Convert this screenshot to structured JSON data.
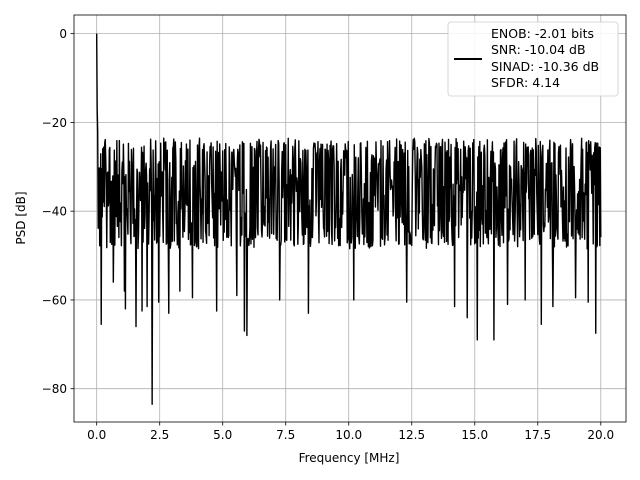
{
  "chart_data": {
    "type": "line",
    "title": "",
    "xlabel": "Frequency [MHz]",
    "ylabel": "PSD [dB]",
    "xlim": [
      -0.9,
      21.0
    ],
    "ylim": [
      -87.5,
      4.2
    ],
    "grid": true,
    "legend_placement": "top-right",
    "x_ticks": [
      0.0,
      2.5,
      5.0,
      7.5,
      10.0,
      12.5,
      15.0,
      17.5,
      20.0
    ],
    "x_tick_labels": [
      "0.0",
      "2.5",
      "5.0",
      "7.5",
      "10.0",
      "12.5",
      "15.0",
      "17.5",
      "20.0"
    ],
    "y_ticks": [
      0,
      -20,
      -40,
      -60,
      -80
    ],
    "y_tick_labels": [
      "0",
      "−20",
      "−40",
      "−60",
      "−80"
    ],
    "series": [
      {
        "color": "#000000",
        "trace": {
          "x_start": 0.0,
          "x_end": 20.0,
          "x_step": 0.02,
          "noise_center_db": -36,
          "noise_span_db": 24,
          "peak": {
            "x": 0.0,
            "y": 0.0
          },
          "dips": [
            {
              "x": 0.18,
              "y": -65.5
            },
            {
              "x": 0.65,
              "y": -56.0
            },
            {
              "x": 1.1,
              "y": -58.0
            },
            {
              "x": 1.15,
              "y": -62.0
            },
            {
              "x": 1.55,
              "y": -66.0
            },
            {
              "x": 1.8,
              "y": -62.5
            },
            {
              "x": 2.0,
              "y": -61.5
            },
            {
              "x": 2.2,
              "y": -83.5
            },
            {
              "x": 2.45,
              "y": -60.5
            },
            {
              "x": 2.85,
              "y": -63.0
            },
            {
              "x": 3.3,
              "y": -58.0
            },
            {
              "x": 3.8,
              "y": -59.5
            },
            {
              "x": 4.75,
              "y": -62.5
            },
            {
              "x": 5.55,
              "y": -59.0
            },
            {
              "x": 5.85,
              "y": -67.0
            },
            {
              "x": 5.95,
              "y": -68.0
            },
            {
              "x": 7.25,
              "y": -60.0
            },
            {
              "x": 8.4,
              "y": -63.0
            },
            {
              "x": 10.2,
              "y": -60.0
            },
            {
              "x": 12.3,
              "y": -60.5
            },
            {
              "x": 14.2,
              "y": -61.5
            },
            {
              "x": 14.7,
              "y": -64.0
            },
            {
              "x": 15.1,
              "y": -69.0
            },
            {
              "x": 15.75,
              "y": -69.0
            },
            {
              "x": 16.3,
              "y": -61.0
            },
            {
              "x": 17.0,
              "y": -60.0
            },
            {
              "x": 17.65,
              "y": -65.5
            },
            {
              "x": 18.1,
              "y": -61.5
            },
            {
              "x": 19.0,
              "y": -59.5
            },
            {
              "x": 19.5,
              "y": -60.5
            },
            {
              "x": 19.8,
              "y": -67.5
            }
          ]
        }
      }
    ],
    "legend": {
      "entries": [
        "ENOB: -2.01 bits",
        "SNR: -10.04 dB",
        "SINAD: -10.36 dB",
        "SFDR: 4.14"
      ]
    }
  }
}
